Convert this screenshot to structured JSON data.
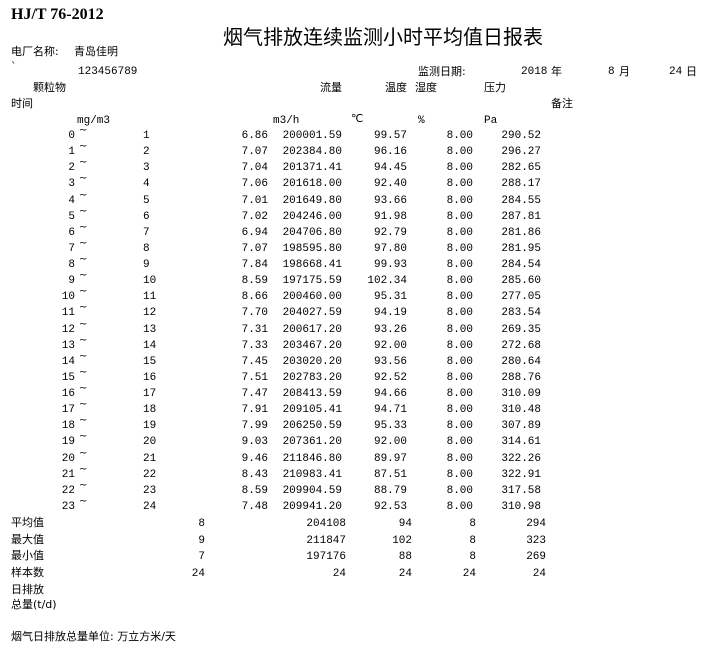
{
  "header": {
    "standard": "HJ/T 76-2012",
    "title": "烟气排放连续监测小时平均值日报表",
    "plant_label": "电厂名称:",
    "plant_name": "青岛佳明",
    "mark": "`",
    "plant_code": "123456789",
    "date_label": "监测日期:",
    "year": "2018",
    "year_unit": "年",
    "month": "8",
    "month_unit": "月",
    "day": "24",
    "day_unit": "日"
  },
  "columns": {
    "particulate": "颗粒物",
    "flow": "流量",
    "temperature": "温度",
    "humidity": "湿度",
    "pressure": "压力",
    "time": "时间",
    "remark": "备注",
    "particulate_unit": "mg/m3",
    "flow_unit": "m3/h",
    "temperature_unit": "℃",
    "humidity_unit": "%",
    "pressure_unit": "Pa"
  },
  "tilde": "~",
  "rows": [
    [
      "0",
      "1",
      "6.86",
      "200001.59",
      "99.57",
      "8.00",
      "290.52"
    ],
    [
      "1",
      "2",
      "7.07",
      "202384.80",
      "96.16",
      "8.00",
      "296.27"
    ],
    [
      "2",
      "3",
      "7.04",
      "201371.41",
      "94.45",
      "8.00",
      "282.65"
    ],
    [
      "3",
      "4",
      "7.06",
      "201618.00",
      "92.40",
      "8.00",
      "288.17"
    ],
    [
      "4",
      "5",
      "7.01",
      "201649.80",
      "93.66",
      "8.00",
      "284.55"
    ],
    [
      "5",
      "6",
      "7.02",
      "204246.00",
      "91.98",
      "8.00",
      "287.81"
    ],
    [
      "6",
      "7",
      "6.94",
      "204706.80",
      "92.79",
      "8.00",
      "281.86"
    ],
    [
      "7",
      "8",
      "7.07",
      "198595.80",
      "97.80",
      "8.00",
      "281.95"
    ],
    [
      "8",
      "9",
      "7.84",
      "198668.41",
      "99.93",
      "8.00",
      "284.54"
    ],
    [
      "9",
      "10",
      "8.59",
      "197175.59",
      "102.34",
      "8.00",
      "285.60"
    ],
    [
      "10",
      "11",
      "8.66",
      "200460.00",
      "95.31",
      "8.00",
      "277.05"
    ],
    [
      "11",
      "12",
      "7.70",
      "204027.59",
      "94.19",
      "8.00",
      "283.54"
    ],
    [
      "12",
      "13",
      "7.31",
      "200617.20",
      "93.26",
      "8.00",
      "269.35"
    ],
    [
      "13",
      "14",
      "7.33",
      "203467.20",
      "92.00",
      "8.00",
      "272.68"
    ],
    [
      "14",
      "15",
      "7.45",
      "203020.20",
      "93.56",
      "8.00",
      "280.64"
    ],
    [
      "15",
      "16",
      "7.51",
      "202783.20",
      "92.52",
      "8.00",
      "288.76"
    ],
    [
      "16",
      "17",
      "7.47",
      "208413.59",
      "94.66",
      "8.00",
      "310.09"
    ],
    [
      "17",
      "18",
      "7.91",
      "209105.41",
      "94.71",
      "8.00",
      "310.48"
    ],
    [
      "18",
      "19",
      "7.99",
      "206250.59",
      "95.33",
      "8.00",
      "307.89"
    ],
    [
      "19",
      "20",
      "9.03",
      "207361.20",
      "92.00",
      "8.00",
      "314.61"
    ],
    [
      "20",
      "21",
      "9.46",
      "211846.80",
      "89.97",
      "8.00",
      "322.26"
    ],
    [
      "21",
      "22",
      "8.43",
      "210983.41",
      "87.51",
      "8.00",
      "322.91"
    ],
    [
      "22",
      "23",
      "8.59",
      "209904.59",
      "88.79",
      "8.00",
      "317.58"
    ],
    [
      "23",
      "24",
      "7.48",
      "209941.20",
      "92.53",
      "8.00",
      "310.98"
    ]
  ],
  "summary": [
    {
      "label": "平均值",
      "values": [
        "8",
        "204108",
        "94",
        "8",
        "294"
      ]
    },
    {
      "label": "最大值",
      "values": [
        "9",
        "211847",
        "102",
        "8",
        "323"
      ]
    },
    {
      "label": "最小值",
      "values": [
        "7",
        "197176",
        "88",
        "8",
        "269"
      ]
    },
    {
      "label": "样本数",
      "values": [
        "24",
        "24",
        "24",
        "24",
        "24"
      ]
    }
  ],
  "daily_total_label_1": "日排放",
  "daily_total_label_2": "总量(t/d)",
  "footer_note": "烟气日排放总量单位: 万立方米/天"
}
